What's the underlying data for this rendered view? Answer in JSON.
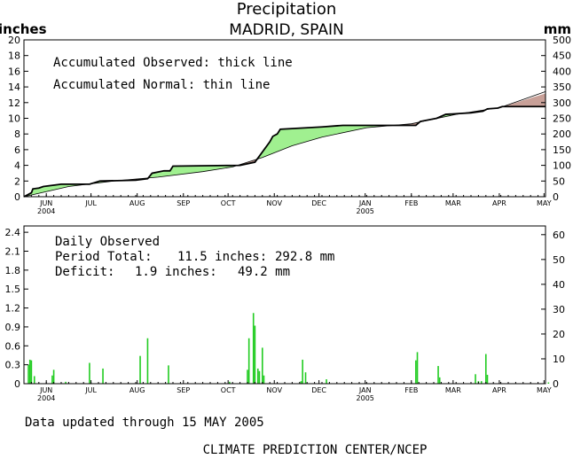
{
  "title": "Precipitation",
  "subtitle": "MADRID, SPAIN",
  "footer_update": "Data updated through 15 MAY 2005",
  "footer_credit": "CLIMATE PREDICTION CENTER/NCEP",
  "colors": {
    "surplus_fill": "#a0f090",
    "deficit_fill": "#c8a098",
    "daily_bar": "#22cc22",
    "line": "#000000"
  },
  "chart_data": [
    {
      "type": "area",
      "name": "accumulated",
      "ylabel_left": "inches",
      "ylabel_right": "mm",
      "legend_observed": "Accumulated Observed: thick line",
      "legend_normal": "Accumulated Normal: thin line",
      "ylim": [
        0,
        20
      ],
      "ylim_right": [
        0,
        500
      ],
      "yticks_left": [
        "0",
        "2",
        "4",
        "6",
        "8",
        "10",
        "12",
        "14",
        "16",
        "18",
        "20"
      ],
      "yticks_right": [
        "0",
        "50",
        "100",
        "150",
        "200",
        "250",
        "300",
        "350",
        "400",
        "450",
        "500"
      ],
      "xlim_days": [
        0,
        350
      ],
      "months": [
        {
          "label": "JUN",
          "year": "2004",
          "day": 15
        },
        {
          "label": "JUL",
          "year": "",
          "day": 45
        },
        {
          "label": "AUG",
          "year": "",
          "day": 76
        },
        {
          "label": "SEP",
          "year": "",
          "day": 107
        },
        {
          "label": "OCT",
          "year": "",
          "day": 137
        },
        {
          "label": "NOV",
          "year": "",
          "day": 168
        },
        {
          "label": "DEC",
          "year": "",
          "day": 198
        },
        {
          "label": "JAN",
          "year": "2005",
          "day": 229
        },
        {
          "label": "FEB",
          "year": "",
          "day": 260
        },
        {
          "label": "MAR",
          "year": "",
          "day": 288
        },
        {
          "label": "APR",
          "year": "",
          "day": 319
        },
        {
          "label": "MAY",
          "year": "",
          "day": 349
        }
      ],
      "observed": [
        [
          0,
          0
        ],
        [
          5,
          0.5
        ],
        [
          6,
          1.0
        ],
        [
          10,
          1.1
        ],
        [
          13,
          1.3
        ],
        [
          25,
          1.6
        ],
        [
          44,
          1.6
        ],
        [
          51,
          2.0
        ],
        [
          75,
          2.1
        ],
        [
          83,
          2.3
        ],
        [
          86,
          3.0
        ],
        [
          94,
          3.3
        ],
        [
          98,
          3.3
        ],
        [
          100,
          3.9
        ],
        [
          145,
          4.0
        ],
        [
          155,
          4.4
        ],
        [
          165,
          7.0
        ],
        [
          167,
          7.7
        ],
        [
          170,
          8.0
        ],
        [
          172,
          8.6
        ],
        [
          200,
          8.9
        ],
        [
          214,
          9.1
        ],
        [
          263,
          9.1
        ],
        [
          266,
          9.6
        ],
        [
          277,
          10.0
        ],
        [
          283,
          10.5
        ],
        [
          300,
          10.7
        ],
        [
          308,
          10.9
        ],
        [
          311,
          11.2
        ],
        [
          318,
          11.3
        ],
        [
          321,
          11.5
        ],
        [
          354,
          11.5
        ]
      ],
      "normal": [
        [
          0,
          0
        ],
        [
          30,
          1.3
        ],
        [
          60,
          2.0
        ],
        [
          90,
          2.5
        ],
        [
          120,
          3.2
        ],
        [
          140,
          3.8
        ],
        [
          160,
          5.0
        ],
        [
          180,
          6.5
        ],
        [
          200,
          7.6
        ],
        [
          230,
          8.8
        ],
        [
          260,
          9.3
        ],
        [
          290,
          10.5
        ],
        [
          320,
          11.4
        ],
        [
          354,
          13.4
        ]
      ]
    },
    {
      "type": "bar",
      "name": "daily",
      "title": "Daily Observed",
      "period_total_label": "Period Total:",
      "period_total_in": "11.5 inches:",
      "period_total_mm": "292.8 mm",
      "deficit_label": "Deficit:",
      "deficit_in": "1.9 inches:",
      "deficit_mm": "49.2 mm",
      "ylim": [
        0,
        2.5
      ],
      "ylim_right": [
        0,
        63.5
      ],
      "yticks_left": [
        "0",
        "0.3",
        "0.6",
        "0.9",
        "1.2",
        "1.5",
        "1.8",
        "2.1",
        "2.4"
      ],
      "yticks_right": [
        "0",
        "10",
        "20",
        "30",
        "40",
        "50",
        "60"
      ],
      "xlim_days": [
        0,
        350
      ],
      "bars": [
        [
          3,
          0.3
        ],
        [
          4,
          0.38
        ],
        [
          5,
          0.37
        ],
        [
          7,
          0.12
        ],
        [
          19,
          0.13
        ],
        [
          20,
          0.22
        ],
        [
          28,
          0.03
        ],
        [
          44,
          0.33
        ],
        [
          53,
          0.24
        ],
        [
          78,
          0.44
        ],
        [
          83,
          0.72
        ],
        [
          97,
          0.29
        ],
        [
          138,
          0.03
        ],
        [
          150,
          0.22
        ],
        [
          151,
          0.72
        ],
        [
          154,
          1.12
        ],
        [
          155,
          0.92
        ],
        [
          157,
          0.24
        ],
        [
          158,
          0.2
        ],
        [
          160,
          0.57
        ],
        [
          161,
          0.13
        ],
        [
          186,
          0.04
        ],
        [
          187,
          0.38
        ],
        [
          189,
          0.18
        ],
        [
          203,
          0.07
        ],
        [
          263,
          0.37
        ],
        [
          264,
          0.5
        ],
        [
          278,
          0.28
        ],
        [
          279,
          0.1
        ],
        [
          303,
          0.15
        ],
        [
          305,
          0.04
        ],
        [
          307,
          0.04
        ],
        [
          310,
          0.47
        ],
        [
          311,
          0.14
        ],
        [
          352,
          0.02
        ]
      ]
    }
  ]
}
